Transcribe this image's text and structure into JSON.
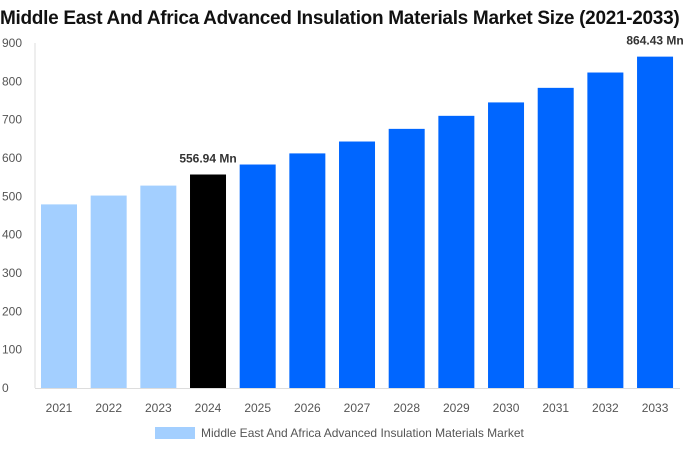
{
  "chart_data": {
    "type": "bar",
    "title": "Middle East And Africa Advanced Insulation Materials Market Size (2021-2033)",
    "categories": [
      "2021",
      "2022",
      "2023",
      "2024",
      "2025",
      "2026",
      "2027",
      "2028",
      "2029",
      "2030",
      "2031",
      "2032",
      "2033"
    ],
    "series": [
      {
        "name": "Middle East And Africa Advanced Insulation Materials Market",
        "values": [
          479,
          502,
          528,
          556.94,
          583,
          612,
          643,
          676,
          710,
          745,
          783,
          823,
          864.43
        ]
      }
    ],
    "bar_colors": [
      "#a3cfff",
      "#a3cfff",
      "#a3cfff",
      "#000000",
      "#0066ff",
      "#0066ff",
      "#0066ff",
      "#0066ff",
      "#0066ff",
      "#0066ff",
      "#0066ff",
      "#0066ff",
      "#0066ff"
    ],
    "data_labels": [
      {
        "index": 3,
        "text": "556.94 Mn"
      },
      {
        "index": 12,
        "text": "864.43 Mn"
      }
    ],
    "yticks": [
      0,
      100,
      200,
      300,
      400,
      500,
      600,
      700,
      800,
      900
    ],
    "ylim": [
      0,
      900
    ],
    "grid": false,
    "legend_position": "bottom"
  }
}
